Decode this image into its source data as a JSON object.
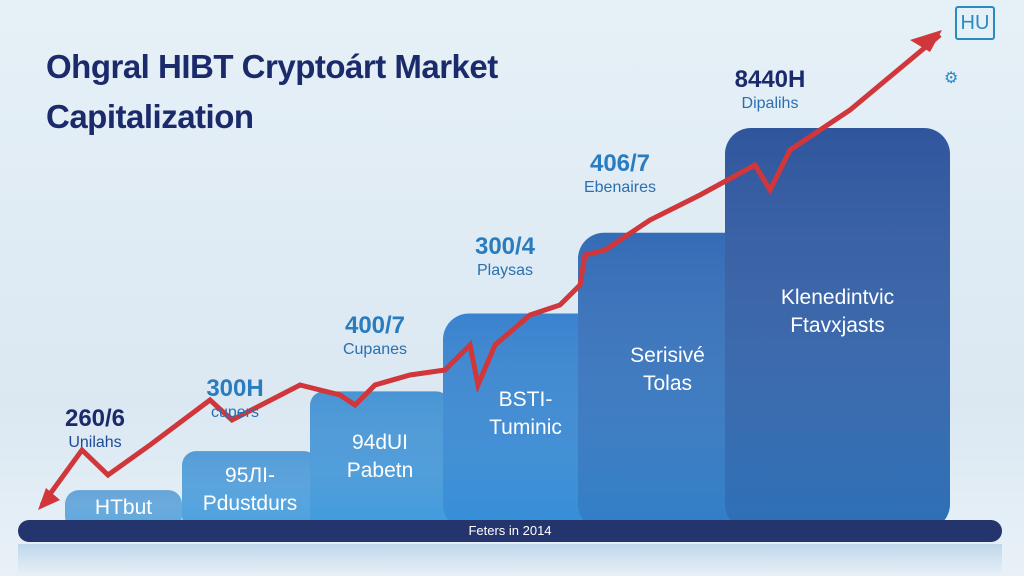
{
  "title_line1": "Ohgral HIBT Cryptoárt Market",
  "title_line2": "Capitalization",
  "logo_text": "HU",
  "gear_icon": "gear-icon",
  "colors": {
    "title": "#1b2a6b",
    "trend": "#d0363a",
    "bar_light": "#3d8fd0",
    "bar_dark": "#1f4a96",
    "base": "#24356e"
  },
  "chart_data": {
    "type": "bar",
    "title": "Ohgral HIBT Cryptoárt Market Capitalization",
    "xlabel": "Feters in 2014",
    "ylabel": "",
    "categories": [
      "HTbut",
      "95ЛI- Pdustdurs",
      "94dUI Pabetn",
      "BSTI- Tuminic",
      "Serisivé Tolas",
      "Klenedintvic Ftavxjasts"
    ],
    "bar_labels": [
      {
        "l1": "HTbut",
        "l2": ""
      },
      {
        "l1": "95ЛI-",
        "l2": "Pdustdurs"
      },
      {
        "l1": "94dUI",
        "l2": "Pabetn"
      },
      {
        "l1": "BSTI-",
        "l2": "Tuminic"
      },
      {
        "l1": "Serisivé",
        "l2": "Tolas"
      },
      {
        "l1": "Klenedintvic",
        "l2": "Ftavxjasts"
      }
    ],
    "annotations": [
      {
        "value": "260/6",
        "sub": "Unilahs"
      },
      {
        "value": "300H",
        "sub": "cupers"
      },
      {
        "value": "400/7",
        "sub": "Cupanes"
      },
      {
        "value": "300/4",
        "sub": "Playsas"
      },
      {
        "value": "406/7",
        "sub": "Ebenaires"
      },
      {
        "value": "8440H",
        "sub": "Dipalihs"
      }
    ],
    "relative_values": [
      1,
      2.3,
      4.3,
      6.9,
      9.6,
      13.1
    ],
    "trend": "rising",
    "grid": false,
    "legend": "none"
  }
}
